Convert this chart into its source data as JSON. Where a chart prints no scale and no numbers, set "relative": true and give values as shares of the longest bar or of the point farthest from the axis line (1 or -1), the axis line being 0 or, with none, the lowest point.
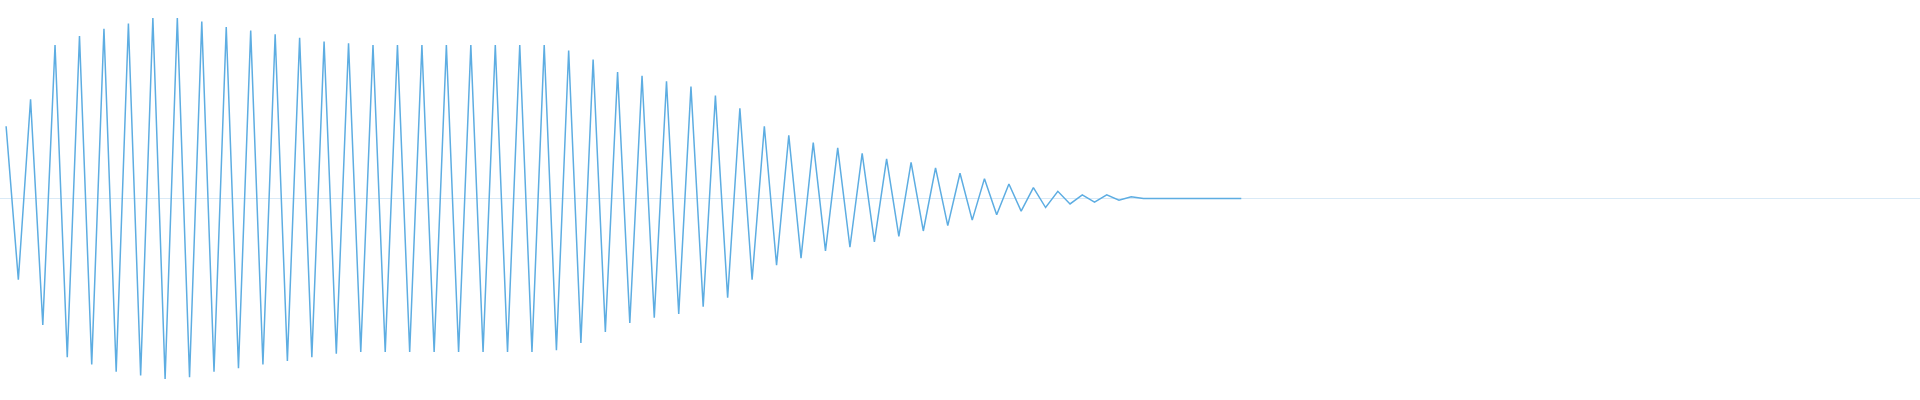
{
  "chart_data": {
    "type": "line",
    "relative": true,
    "marker": "none",
    "line_style": "solid",
    "categories": [
      null,
      null,
      null,
      null,
      null,
      null,
      null,
      null,
      null,
      null,
      null,
      null,
      null,
      null,
      null,
      null,
      null,
      null,
      null,
      null,
      null,
      null,
      null,
      null,
      null,
      null,
      null,
      null,
      null,
      null,
      null,
      null,
      null,
      null,
      null,
      null,
      null,
      null,
      null,
      null,
      null,
      null,
      null,
      null,
      null,
      null,
      null,
      null,
      null,
      null,
      null,
      null,
      null,
      null,
      null,
      null,
      null,
      null,
      null,
      null,
      null,
      null,
      null,
      null,
      null,
      null,
      null,
      null,
      null,
      null,
      null,
      null,
      null,
      null,
      null,
      null,
      null,
      null,
      null,
      null,
      null,
      null,
      null,
      null,
      null,
      null,
      null,
      null,
      null,
      null,
      null,
      null,
      null,
      null,
      null,
      null,
      null,
      null,
      null,
      null,
      null,
      null,
      null,
      null,
      null,
      null,
      null,
      null,
      null,
      null,
      null,
      null,
      null,
      null,
      null,
      null,
      null,
      null,
      null,
      null,
      null,
      null,
      null,
      null,
      null,
      null,
      null,
      null,
      null,
      null,
      null,
      null,
      null,
      null,
      null,
      null,
      null,
      null,
      null,
      null,
      null,
      null,
      null,
      null,
      null,
      null,
      null,
      null,
      null,
      null,
      null,
      null,
      null,
      null,
      null,
      null,
      null
    ],
    "series": [
      {
        "color": "#5dade2",
        "values": [
          0.4,
          -0.45,
          0.55,
          -0.7,
          0.85,
          -0.88,
          0.9,
          -0.92,
          0.94,
          -0.96,
          0.97,
          -0.98,
          1,
          -1,
          1,
          -0.99,
          0.98,
          -0.96,
          0.95,
          -0.94,
          0.93,
          -0.92,
          0.91,
          -0.9,
          0.89,
          -0.88,
          0.87,
          -0.86,
          0.86,
          -0.85,
          0.85,
          -0.85,
          0.85,
          -0.85,
          0.85,
          -0.85,
          0.85,
          -0.85,
          0.85,
          -0.85,
          0.85,
          -0.85,
          0.85,
          -0.85,
          0.85,
          -0.84,
          0.82,
          -0.8,
          0.77,
          -0.74,
          0.7,
          -0.69,
          0.68,
          -0.66,
          0.65,
          -0.64,
          0.62,
          -0.6,
          0.57,
          -0.55,
          0.5,
          -0.45,
          0.4,
          -0.37,
          0.35,
          -0.33,
          0.31,
          -0.29,
          0.28,
          -0.27,
          0.25,
          -0.24,
          0.22,
          -0.21,
          0.2,
          -0.18,
          0.17,
          -0.15,
          0.14,
          -0.12,
          0.11,
          -0.09,
          0.08,
          -0.07,
          0.06,
          -0.05,
          0.04,
          -0.03,
          0.02,
          -0.02,
          0.02,
          -0.01,
          0.01,
          0,
          0,
          0,
          0,
          0,
          0,
          0,
          0,
          0,
          null,
          null,
          null,
          null,
          null,
          null,
          null,
          null,
          null,
          null,
          null,
          null,
          null,
          null,
          null,
          null,
          null,
          null,
          null,
          null,
          null,
          null,
          null,
          null,
          null,
          null,
          null,
          null,
          null,
          null,
          null,
          null,
          null,
          null,
          null,
          null,
          null,
          null,
          null,
          null,
          null,
          null,
          null,
          null,
          null,
          null,
          null,
          null,
          null,
          null,
          null,
          null,
          null,
          null,
          null
        ]
      }
    ]
  }
}
